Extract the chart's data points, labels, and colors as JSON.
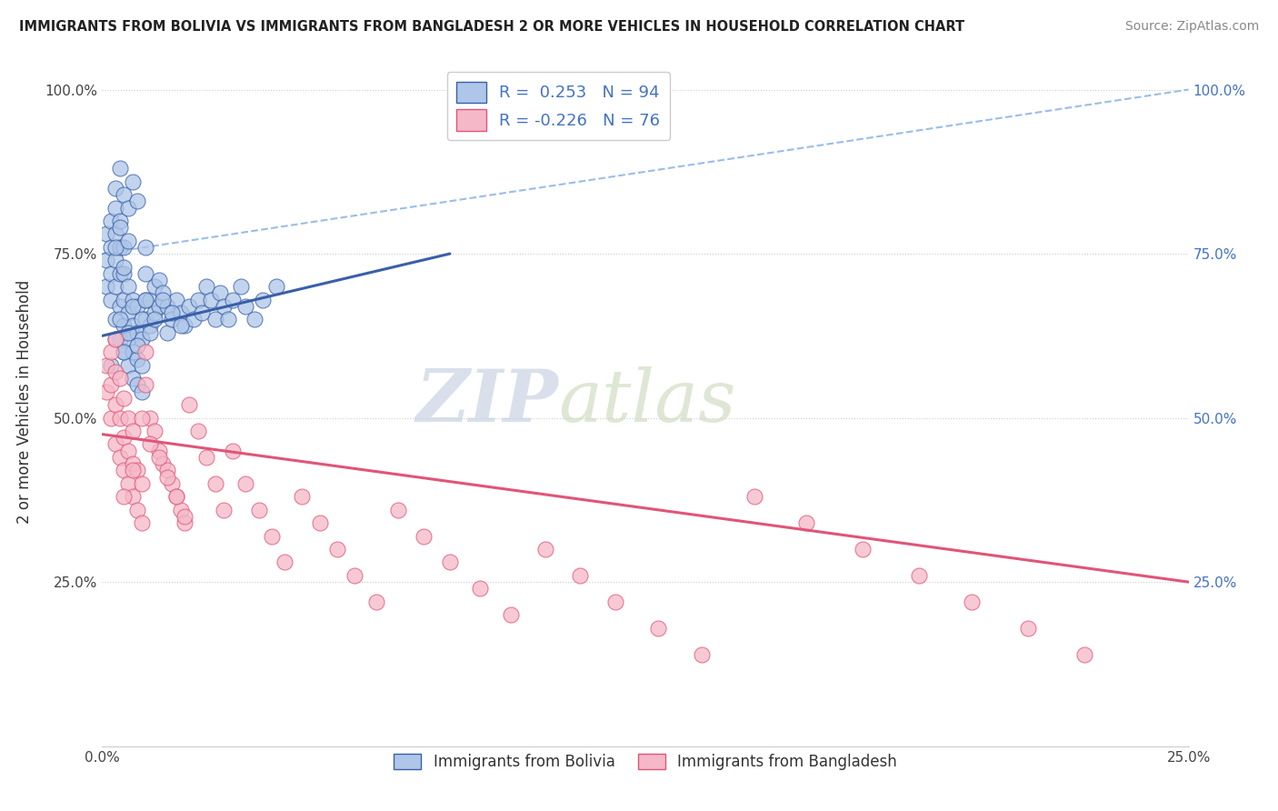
{
  "title": "IMMIGRANTS FROM BOLIVIA VS IMMIGRANTS FROM BANGLADESH 2 OR MORE VEHICLES IN HOUSEHOLD CORRELATION CHART",
  "source": "Source: ZipAtlas.com",
  "ylabel": "2 or more Vehicles in Household",
  "xlabel_bolivia": "Immigrants from Bolivia",
  "xlabel_bangladesh": "Immigrants from Bangladesh",
  "r_bolivia": 0.253,
  "n_bolivia": 94,
  "r_bangladesh": -0.226,
  "n_bangladesh": 76,
  "bolivia_color": "#aec6e8",
  "bangladesh_color": "#f5b8c8",
  "bolivia_line_color": "#3a5fa8",
  "bangladesh_line_color": "#e05578",
  "trend_dashed_color": "#9bbde8",
  "watermark_zip_color": "#c8d4e8",
  "watermark_atlas_color": "#c8d8c8",
  "xlim": [
    0.0,
    0.25
  ],
  "ylim": [
    0.0,
    1.05
  ],
  "yticks": [
    0.0,
    0.25,
    0.5,
    0.75,
    1.0
  ],
  "ytick_labels_left": [
    "",
    "25.0%",
    "50.0%",
    "75.0%",
    "100.0%"
  ],
  "ytick_labels_right": [
    "",
    "25.0%",
    "50.0%",
    "75.0%",
    "100.0%"
  ],
  "bolivia_x": [
    0.001,
    0.001,
    0.001,
    0.002,
    0.002,
    0.002,
    0.002,
    0.003,
    0.003,
    0.003,
    0.003,
    0.003,
    0.004,
    0.004,
    0.004,
    0.004,
    0.004,
    0.005,
    0.005,
    0.005,
    0.005,
    0.005,
    0.006,
    0.006,
    0.006,
    0.006,
    0.007,
    0.007,
    0.007,
    0.007,
    0.008,
    0.008,
    0.008,
    0.008,
    0.009,
    0.009,
    0.009,
    0.01,
    0.01,
    0.01,
    0.01,
    0.011,
    0.011,
    0.012,
    0.012,
    0.013,
    0.013,
    0.014,
    0.015,
    0.015,
    0.016,
    0.017,
    0.018,
    0.019,
    0.02,
    0.021,
    0.022,
    0.023,
    0.024,
    0.025,
    0.026,
    0.027,
    0.028,
    0.029,
    0.03,
    0.032,
    0.033,
    0.035,
    0.037,
    0.04,
    0.002,
    0.003,
    0.004,
    0.005,
    0.006,
    0.007,
    0.008,
    0.009,
    0.01,
    0.011,
    0.012,
    0.014,
    0.016,
    0.018,
    0.003,
    0.004,
    0.005,
    0.006,
    0.007,
    0.008,
    0.003,
    0.004,
    0.005,
    0.006
  ],
  "bolivia_y": [
    0.7,
    0.74,
    0.78,
    0.68,
    0.72,
    0.76,
    0.8,
    0.65,
    0.7,
    0.74,
    0.78,
    0.82,
    0.62,
    0.67,
    0.72,
    0.76,
    0.8,
    0.6,
    0.64,
    0.68,
    0.72,
    0.76,
    0.58,
    0.62,
    0.66,
    0.7,
    0.56,
    0.6,
    0.64,
    0.68,
    0.55,
    0.59,
    0.63,
    0.67,
    0.54,
    0.58,
    0.62,
    0.65,
    0.68,
    0.72,
    0.76,
    0.64,
    0.68,
    0.66,
    0.7,
    0.67,
    0.71,
    0.69,
    0.63,
    0.67,
    0.65,
    0.68,
    0.66,
    0.64,
    0.67,
    0.65,
    0.68,
    0.66,
    0.7,
    0.68,
    0.65,
    0.69,
    0.67,
    0.65,
    0.68,
    0.7,
    0.67,
    0.65,
    0.68,
    0.7,
    0.58,
    0.62,
    0.65,
    0.6,
    0.63,
    0.67,
    0.61,
    0.65,
    0.68,
    0.63,
    0.65,
    0.68,
    0.66,
    0.64,
    0.85,
    0.88,
    0.84,
    0.82,
    0.86,
    0.83,
    0.76,
    0.79,
    0.73,
    0.77
  ],
  "bangladesh_x": [
    0.001,
    0.001,
    0.002,
    0.002,
    0.002,
    0.003,
    0.003,
    0.003,
    0.004,
    0.004,
    0.004,
    0.005,
    0.005,
    0.005,
    0.006,
    0.006,
    0.006,
    0.007,
    0.007,
    0.007,
    0.008,
    0.008,
    0.009,
    0.009,
    0.01,
    0.01,
    0.011,
    0.012,
    0.013,
    0.014,
    0.015,
    0.016,
    0.017,
    0.018,
    0.019,
    0.02,
    0.022,
    0.024,
    0.026,
    0.028,
    0.03,
    0.033,
    0.036,
    0.039,
    0.042,
    0.046,
    0.05,
    0.054,
    0.058,
    0.063,
    0.068,
    0.074,
    0.08,
    0.087,
    0.094,
    0.102,
    0.11,
    0.118,
    0.128,
    0.138,
    0.15,
    0.162,
    0.175,
    0.188,
    0.2,
    0.213,
    0.226,
    0.003,
    0.005,
    0.007,
    0.009,
    0.011,
    0.013,
    0.015,
    0.017,
    0.019
  ],
  "bangladesh_y": [
    0.54,
    0.58,
    0.5,
    0.55,
    0.6,
    0.46,
    0.52,
    0.57,
    0.44,
    0.5,
    0.56,
    0.42,
    0.47,
    0.53,
    0.4,
    0.45,
    0.5,
    0.38,
    0.43,
    0.48,
    0.36,
    0.42,
    0.34,
    0.4,
    0.55,
    0.6,
    0.5,
    0.48,
    0.45,
    0.43,
    0.42,
    0.4,
    0.38,
    0.36,
    0.34,
    0.52,
    0.48,
    0.44,
    0.4,
    0.36,
    0.45,
    0.4,
    0.36,
    0.32,
    0.28,
    0.38,
    0.34,
    0.3,
    0.26,
    0.22,
    0.36,
    0.32,
    0.28,
    0.24,
    0.2,
    0.3,
    0.26,
    0.22,
    0.18,
    0.14,
    0.38,
    0.34,
    0.3,
    0.26,
    0.22,
    0.18,
    0.14,
    0.62,
    0.38,
    0.42,
    0.5,
    0.46,
    0.44,
    0.41,
    0.38,
    0.35
  ],
  "bolivia_trend_x": [
    0.0,
    0.08
  ],
  "bolivia_trend_y": [
    0.625,
    0.75
  ],
  "bangladesh_trend_x": [
    0.0,
    0.25
  ],
  "bangladesh_trend_y": [
    0.475,
    0.25
  ],
  "dashed_trend_x": [
    0.0,
    0.25
  ],
  "dashed_trend_y": [
    0.75,
    1.0
  ],
  "fig_width": 14.06,
  "fig_height": 8.92,
  "dpi": 100
}
